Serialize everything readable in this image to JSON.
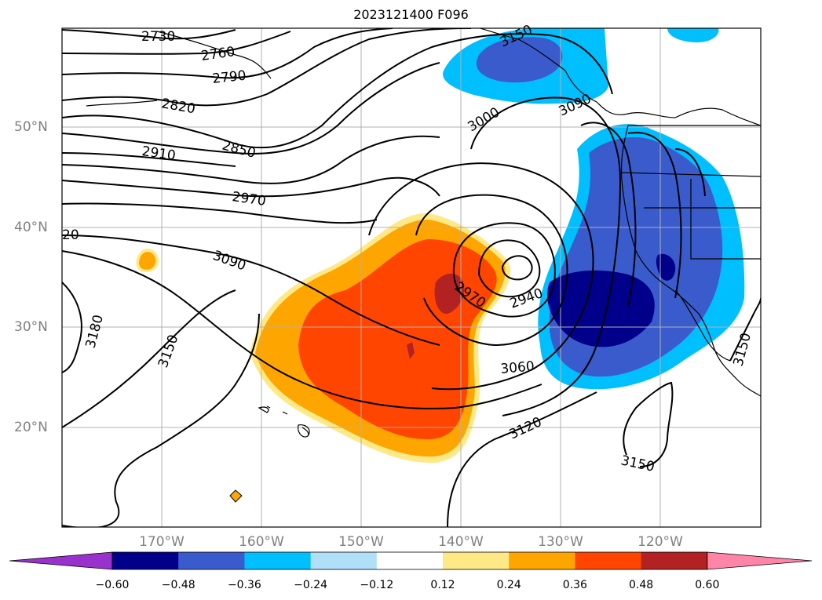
{
  "title": "2023121400 F096",
  "lat_labels": [
    "50°N",
    "40°N",
    "30°N",
    "20°N"
  ],
  "lon_labels": [
    "170°W",
    "160°W",
    "150°W",
    "140°W",
    "130°W",
    "120°W"
  ],
  "contour_labels": [
    "2730",
    "2760",
    "2790",
    "2820",
    "2850",
    "2910",
    "2970",
    "3090",
    "20",
    "3180",
    "3150",
    "3000",
    "2970",
    "2940",
    "3060",
    "3120",
    "3150",
    "3150",
    "3150",
    "3090"
  ],
  "colorbar": {
    "ticks": [
      "−0.60",
      "−0.48",
      "−0.36",
      "−0.24",
      "−0.12",
      "0.12",
      "0.24",
      "0.36",
      "0.48",
      "0.60"
    ],
    "colors": [
      "#9932cc",
      "#00008b",
      "#3a5bcc",
      "#00bfff",
      "#b0e0f8",
      "#ffffff",
      "#ffe987",
      "#ffa500",
      "#ff4500",
      "#b22222",
      "#ff85a8"
    ]
  },
  "map_colors": {
    "neg_light": "#00bfff",
    "neg_mid": "#3a5bcc",
    "neg_dark": "#00008b",
    "pos_pale": "#ffe987",
    "pos_orange": "#ffa500",
    "pos_red": "#ff4500",
    "pos_dark": "#b22222"
  }
}
